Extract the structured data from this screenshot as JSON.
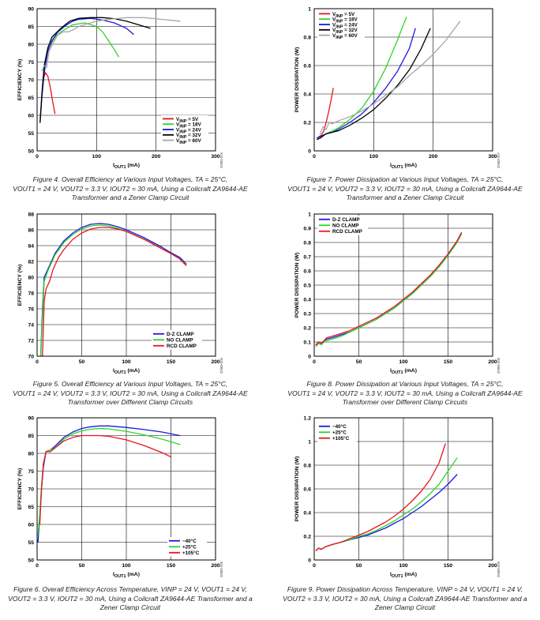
{
  "chart_data": [
    {
      "type": "line",
      "xlabel": "I_OUT1 (mA)",
      "ylabel": "EFFICIENCY (%)",
      "xlim": [
        0,
        300
      ],
      "ylim": [
        50,
        90
      ],
      "xticks": [
        0,
        100,
        200,
        300
      ],
      "yticks": [
        50,
        55,
        60,
        65,
        70,
        75,
        80,
        85,
        90
      ],
      "legend_position": "bottom-right",
      "fig_code": "20983-004",
      "caption_lines": [
        "Figure 4. Overall Efficiency at Various Input Voltages, TA = 25°C,",
        "VOUT1 = 24 V, VOUT2 = 3.3 V, IOUT2 = 30 mA, Using a Coilcraft ZA9644-AE",
        "Transformer and a Zener Clamp Circuit"
      ],
      "series": [
        {
          "name": "VINP = 5V",
          "color": "#e8141c",
          "x": [
            8,
            10,
            14,
            18,
            22,
            26,
            30
          ],
          "y": [
            65,
            70,
            72,
            71,
            68,
            64,
            60.5
          ]
        },
        {
          "name": "VINP = 18V",
          "color": "#2ad62a",
          "x": [
            5,
            8,
            12,
            16,
            20,
            30,
            40,
            50,
            60,
            80,
            100,
            110,
            120,
            130,
            137
          ],
          "y": [
            59,
            65,
            72,
            77,
            79,
            82,
            83.5,
            84.5,
            85.5,
            86,
            85,
            83.5,
            81,
            78.5,
            76.5
          ]
        },
        {
          "name": "VINP = 24V",
          "color": "#1a1adc",
          "x": [
            5,
            8,
            12,
            18,
            25,
            35,
            50,
            60,
            70,
            90,
            110,
            130,
            150,
            162
          ],
          "y": [
            58,
            65,
            72,
            78,
            81,
            83.5,
            85.5,
            86.5,
            87,
            87.3,
            86.8,
            86,
            84.5,
            82.8
          ]
        },
        {
          "name": "VINP = 32V",
          "color": "#000000",
          "x": [
            5,
            8,
            12,
            18,
            25,
            40,
            55,
            70,
            90,
            110,
            130,
            150,
            170,
            190
          ],
          "y": [
            58,
            66,
            74,
            79,
            82,
            84.5,
            86.5,
            87.3,
            87.5,
            87.5,
            87.2,
            86.5,
            85.5,
            84.5
          ]
        },
        {
          "name": "VINP = 60V",
          "color": "#a6a6a6",
          "x": [
            8,
            12,
            16,
            20,
            26,
            34,
            44,
            52,
            60,
            70,
            80,
            100,
            120,
            150,
            180,
            210,
            240
          ],
          "y": [
            72.5,
            74,
            73.5,
            78,
            80,
            82.5,
            83.5,
            83.5,
            84,
            85,
            85.5,
            86.5,
            87,
            87.5,
            87.5,
            87,
            86.5
          ]
        }
      ]
    },
    {
      "type": "line",
      "xlabel": "I_OUT1 (mA)",
      "ylabel": "POWER DISSIPATION (W)",
      "xlim": [
        0,
        300
      ],
      "ylim": [
        0,
        1.0
      ],
      "xticks": [
        0,
        100,
        200,
        300
      ],
      "yticks": [
        0,
        0.2,
        0.4,
        0.6,
        0.8,
        1.0
      ],
      "legend_position": "top-left",
      "fig_code": "20983-007",
      "caption_lines": [
        "Figure 7. Power Dissipation at Various Input Voltages, TA = 25°C,",
        "VOUT1 = 24 V, VOUT2 = 3.3 V, IOUT2 = 30 mA, Using a Coilcraft ZA9644-AE",
        "Transformer and a Zener Clamp Circuit"
      ],
      "series": [
        {
          "name": "VINP = 5V",
          "color": "#e8141c",
          "x": [
            5,
            8,
            12,
            16,
            20,
            24,
            28,
            32
          ],
          "y": [
            0.09,
            0.1,
            0.11,
            0.14,
            0.2,
            0.27,
            0.35,
            0.44
          ]
        },
        {
          "name": "VINP = 18V",
          "color": "#2ad62a",
          "x": [
            5,
            10,
            20,
            30,
            40,
            60,
            80,
            100,
            120,
            140,
            155
          ],
          "y": [
            0.09,
            0.1,
            0.12,
            0.14,
            0.16,
            0.22,
            0.3,
            0.42,
            0.58,
            0.78,
            0.94
          ]
        },
        {
          "name": "VINP = 24V",
          "color": "#1a1adc",
          "x": [
            5,
            10,
            20,
            30,
            40,
            60,
            80,
            100,
            120,
            140,
            160,
            170
          ],
          "y": [
            0.09,
            0.1,
            0.12,
            0.13,
            0.15,
            0.2,
            0.26,
            0.34,
            0.44,
            0.56,
            0.72,
            0.86
          ]
        },
        {
          "name": "VINP = 32V",
          "color": "#000000",
          "x": [
            5,
            10,
            20,
            40,
            60,
            80,
            100,
            120,
            140,
            160,
            180,
            195
          ],
          "y": [
            0.08,
            0.09,
            0.12,
            0.14,
            0.18,
            0.23,
            0.29,
            0.37,
            0.46,
            0.57,
            0.72,
            0.86
          ]
        },
        {
          "name": "VINP = 60V",
          "color": "#a6a6a6",
          "x": [
            10,
            15,
            20,
            25,
            30,
            40,
            60,
            80,
            100,
            120,
            140,
            160,
            180,
            200,
            220,
            245
          ],
          "y": [
            0.12,
            0.17,
            0.15,
            0.2,
            0.19,
            0.21,
            0.24,
            0.28,
            0.33,
            0.39,
            0.45,
            0.53,
            0.6,
            0.68,
            0.77,
            0.91
          ]
        }
      ]
    },
    {
      "type": "line",
      "xlabel": "I_OUT1 (mA)",
      "ylabel": "EFFICIENCY (%)",
      "xlim": [
        0,
        200
      ],
      "ylim": [
        70,
        88
      ],
      "xticks": [
        0,
        50,
        100,
        150,
        200
      ],
      "yticks": [
        70,
        72,
        74,
        76,
        78,
        80,
        82,
        84,
        86,
        88
      ],
      "legend_position": "bottom-right",
      "fig_code": "20983-005",
      "caption_lines": [
        "Figure 5. Overall Efficiency at Various Input Voltages, TA = 25°C,",
        "VOUT1 = 24 V, VOUT2 = 3.3 V, IOUT2 = 30 mA, Using a Coilcraft ZA9644-AE",
        "Transformer over Different Clamp Circuits"
      ],
      "series": [
        {
          "name": "D-Z CLAMP",
          "color": "#1a1adc",
          "x": [
            4,
            6,
            8,
            12,
            16,
            20,
            30,
            40,
            50,
            60,
            70,
            80,
            90,
            100,
            110,
            120,
            130,
            140,
            150,
            160,
            167
          ],
          "y": [
            70,
            76,
            80,
            81,
            82,
            83,
            84.6,
            85.6,
            86.3,
            86.7,
            86.8,
            86.7,
            86.4,
            86,
            85.5,
            85,
            84.4,
            83.8,
            83.1,
            82.5,
            81.7
          ]
        },
        {
          "name": "NO CLAMP",
          "color": "#2ad62a",
          "x": [
            4,
            6,
            8,
            12,
            16,
            20,
            30,
            40,
            50,
            60,
            70,
            80,
            90,
            100,
            110,
            120,
            130,
            140,
            150,
            160,
            167
          ],
          "y": [
            70,
            75,
            79.5,
            80.8,
            81.8,
            82.8,
            84.4,
            85.4,
            86.1,
            86.5,
            86.6,
            86.5,
            86.2,
            85.8,
            85.3,
            84.8,
            84.2,
            83.6,
            83,
            82.3,
            81.6
          ]
        },
        {
          "name": "RCD CLAMP",
          "color": "#e8141c",
          "x": [
            6,
            8,
            10,
            14,
            18,
            24,
            30,
            40,
            50,
            60,
            70,
            80,
            90,
            100,
            110,
            120,
            130,
            140,
            150,
            160,
            167
          ],
          "y": [
            70,
            77,
            78.5,
            79.5,
            81,
            82.5,
            83.5,
            84.8,
            85.6,
            86.1,
            86.3,
            86.3,
            86.1,
            85.8,
            85.3,
            84.8,
            84.2,
            83.6,
            83,
            82.3,
            81.5
          ]
        }
      ]
    },
    {
      "type": "line",
      "xlabel": "I_OUT1 (mA)",
      "ylabel": "POWER DISSIPATION (W)",
      "xlim": [
        0,
        200
      ],
      "ylim": [
        0,
        1.0
      ],
      "xticks": [
        0,
        50,
        100,
        150,
        200
      ],
      "yticks": [
        0,
        0.1,
        0.2,
        0.3,
        0.4,
        0.5,
        0.6,
        0.7,
        0.8,
        0.9,
        1.0
      ],
      "legend_position": "top-left",
      "fig_code": "20983-008",
      "caption_lines": [
        "Figure 8. Power Dissipation at Various Input Voltages, TA = 25°C,",
        "VOUT1 = 24 V, VOUT2 = 3.3 V, IOUT2 = 30 mA, Using a Coilcraft ZA9644-AE",
        "Transformer over Different Clamp Circuits"
      ],
      "series": [
        {
          "name": "D-Z CLAMP",
          "color": "#1a1adc",
          "x": [
            2,
            5,
            8,
            11,
            14,
            20,
            30,
            40,
            50,
            60,
            70,
            80,
            90,
            100,
            110,
            120,
            130,
            140,
            150,
            160,
            165
          ],
          "y": [
            0.08,
            0.1,
            0.09,
            0.11,
            0.12,
            0.13,
            0.15,
            0.17,
            0.2,
            0.23,
            0.26,
            0.3,
            0.34,
            0.39,
            0.44,
            0.5,
            0.56,
            0.63,
            0.71,
            0.8,
            0.86
          ]
        },
        {
          "name": "NO CLAMP",
          "color": "#2ad62a",
          "x": [
            2,
            5,
            8,
            11,
            14,
            20,
            30,
            40,
            50,
            60,
            70,
            80,
            90,
            100,
            110,
            120,
            130,
            140,
            150,
            160,
            165
          ],
          "y": [
            0.07,
            0.09,
            0.08,
            0.1,
            0.11,
            0.12,
            0.14,
            0.17,
            0.2,
            0.23,
            0.26,
            0.3,
            0.34,
            0.39,
            0.44,
            0.5,
            0.56,
            0.63,
            0.71,
            0.8,
            0.86
          ]
        },
        {
          "name": "RCD CLAMP",
          "color": "#e8141c",
          "x": [
            2,
            5,
            8,
            11,
            14,
            20,
            30,
            40,
            50,
            60,
            70,
            80,
            90,
            100,
            110,
            120,
            130,
            140,
            150,
            160,
            165
          ],
          "y": [
            0.08,
            0.1,
            0.09,
            0.11,
            0.13,
            0.14,
            0.16,
            0.18,
            0.21,
            0.24,
            0.27,
            0.31,
            0.35,
            0.4,
            0.45,
            0.51,
            0.57,
            0.64,
            0.72,
            0.81,
            0.87
          ]
        }
      ]
    },
    {
      "type": "line",
      "xlabel": "I_OUT1 (mA)",
      "ylabel": "EFFICIENCY (%)",
      "xlim": [
        0,
        200
      ],
      "ylim": [
        50,
        90
      ],
      "xticks": [
        0,
        50,
        100,
        150,
        200
      ],
      "yticks": [
        50,
        55,
        60,
        65,
        70,
        75,
        80,
        85,
        90
      ],
      "legend_position": "bottom-right",
      "fig_code": "20983-006",
      "caption_lines": [
        "Figure 6. Overall Efficiency Across Temperature, VINP = 24 V, VOUT1 = 24 V,",
        "VOUT2 = 3.3 V, IOUT2 = 30 mA, Using a Coilcraft ZA9644-AE Transformer and a",
        "Zener Clamp Circuit"
      ],
      "series": [
        {
          "name": "−40°C",
          "color": "#1a1adc",
          "x": [
            1,
            3,
            5,
            7,
            10,
            15,
            20,
            30,
            40,
            50,
            60,
            70,
            80,
            100,
            120,
            140,
            160
          ],
          "y": [
            55,
            62,
            70,
            76,
            80.5,
            81,
            82,
            84.5,
            86,
            87,
            87.5,
            87.7,
            87.7,
            87.3,
            86.7,
            86,
            85
          ]
        },
        {
          "name": "+25°C",
          "color": "#2ad62a",
          "x": [
            1,
            3,
            5,
            7,
            10,
            15,
            20,
            30,
            40,
            50,
            60,
            70,
            80,
            100,
            120,
            140,
            160
          ],
          "y": [
            57,
            63,
            71,
            77,
            80.5,
            81,
            81.5,
            84,
            85.5,
            86.3,
            86.8,
            87,
            86.9,
            86.2,
            85.2,
            84,
            82.5
          ]
        },
        {
          "name": "+105°C",
          "color": "#e8141c",
          "x": [
            3,
            5,
            7,
            10,
            15,
            20,
            30,
            40,
            50,
            60,
            70,
            80,
            100,
            120,
            140,
            150
          ],
          "y": [
            60,
            70,
            77,
            80.5,
            80.5,
            81.5,
            83.5,
            84.5,
            85,
            85,
            85,
            84.8,
            83.8,
            82.2,
            80.2,
            79
          ]
        }
      ]
    },
    {
      "type": "line",
      "xlabel": "I_OUT1 (mA)",
      "ylabel": "POWER DISSIPATION (W)",
      "xlim": [
        0,
        200
      ],
      "ylim": [
        0,
        1.2
      ],
      "xticks": [
        0,
        50,
        100,
        150,
        200
      ],
      "yticks": [
        0,
        0.2,
        0.4,
        0.6,
        0.8,
        1.0,
        1.2
      ],
      "legend_position": "top-left",
      "fig_code": "20983-009",
      "caption_lines": [
        "Figure 9. Power Dissipation Across Temperature, VINP = 24 V, VOUT1 = 24 V,",
        "VOUT2 = 3.3 V, IOUT2 = 30 mA, Using a Coilcraft ZA9644-AE Transformer and a",
        "Zener Clamp Circuit"
      ],
      "series": [
        {
          "name": "−40°C",
          "color": "#1a1adc",
          "x": [
            2,
            5,
            8,
            12,
            20,
            30,
            40,
            50,
            60,
            70,
            80,
            90,
            100,
            110,
            120,
            130,
            140,
            150,
            160
          ],
          "y": [
            0.08,
            0.1,
            0.09,
            0.11,
            0.13,
            0.15,
            0.17,
            0.19,
            0.21,
            0.24,
            0.27,
            0.31,
            0.35,
            0.4,
            0.45,
            0.51,
            0.57,
            0.64,
            0.72
          ]
        },
        {
          "name": "+25°C",
          "color": "#2ad62a",
          "x": [
            2,
            5,
            8,
            12,
            20,
            30,
            40,
            50,
            60,
            70,
            80,
            90,
            100,
            110,
            120,
            130,
            140,
            150,
            160
          ],
          "y": [
            0.08,
            0.1,
            0.09,
            0.11,
            0.13,
            0.15,
            0.17,
            0.2,
            0.22,
            0.25,
            0.29,
            0.33,
            0.38,
            0.43,
            0.49,
            0.56,
            0.64,
            0.75,
            0.86
          ]
        },
        {
          "name": "+105°C",
          "color": "#e8141c",
          "x": [
            2,
            5,
            8,
            12,
            20,
            30,
            40,
            50,
            60,
            70,
            80,
            90,
            100,
            110,
            120,
            130,
            140,
            147
          ],
          "y": [
            0.08,
            0.1,
            0.09,
            0.11,
            0.13,
            0.15,
            0.18,
            0.21,
            0.24,
            0.28,
            0.32,
            0.37,
            0.43,
            0.5,
            0.58,
            0.68,
            0.82,
            0.98
          ]
        }
      ]
    }
  ]
}
